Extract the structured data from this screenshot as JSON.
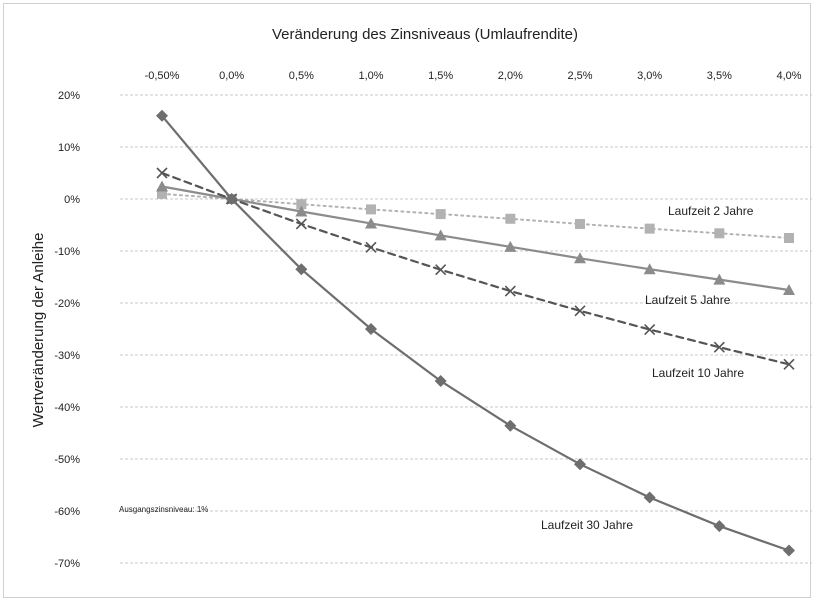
{
  "chart_data": {
    "type": "line",
    "title": "Veränderung des Zinsniveaus (Umlaufrendite)",
    "ylabel": "Wertveränderung der Anleihe",
    "xlabel": "",
    "x_ticks": [
      "-0,50%",
      "0,0%",
      "0,5%",
      "1,0%",
      "1,5%",
      "2,0%",
      "2,5%",
      "3,0%",
      "3,5%",
      "4,0%"
    ],
    "x": [
      -0.5,
      0.0,
      0.5,
      1.0,
      1.5,
      2.0,
      2.5,
      3.0,
      3.5,
      4.0
    ],
    "xlim": [
      -0.5,
      4.0
    ],
    "y_ticks": [
      "20%",
      "10%",
      "0%",
      "-10%",
      "-20%",
      "-30%",
      "-40%",
      "-50%",
      "-60%",
      "-70%"
    ],
    "ylim": [
      -70,
      20
    ],
    "grid": true,
    "x_axis_position": "top",
    "annotation": "Ausgangszinsniveau: 1%",
    "series": [
      {
        "name": "Laufzeit 2 Jahre",
        "values": [
          1.0,
          0.0,
          -1.0,
          -2.0,
          -2.9,
          -3.8,
          -4.8,
          -5.7,
          -6.6,
          -7.5
        ],
        "color": "#b2b2b2",
        "line_style": "dotted",
        "marker": "square"
      },
      {
        "name": "Laufzeit 5 Jahre",
        "values": [
          2.4,
          0.0,
          -2.4,
          -4.7,
          -7.0,
          -9.2,
          -11.4,
          -13.5,
          -15.5,
          -17.5
        ],
        "color": "#8c8c8c",
        "line_style": "solid",
        "marker": "triangle"
      },
      {
        "name": "Laufzeit 10 Jahre",
        "values": [
          5.0,
          0.0,
          -4.8,
          -9.3,
          -13.6,
          -17.7,
          -21.5,
          -25.1,
          -28.5,
          -31.8
        ],
        "color": "#555555",
        "line_style": "dashed",
        "marker": "x"
      },
      {
        "name": "Laufzeit 30 Jahre",
        "values": [
          16.0,
          0.0,
          -13.5,
          -25.0,
          -35.0,
          -43.6,
          -51.0,
          -57.4,
          -62.9,
          -67.6
        ],
        "color": "#6e6e6e",
        "line_style": "solid",
        "marker": "diamond"
      }
    ]
  }
}
